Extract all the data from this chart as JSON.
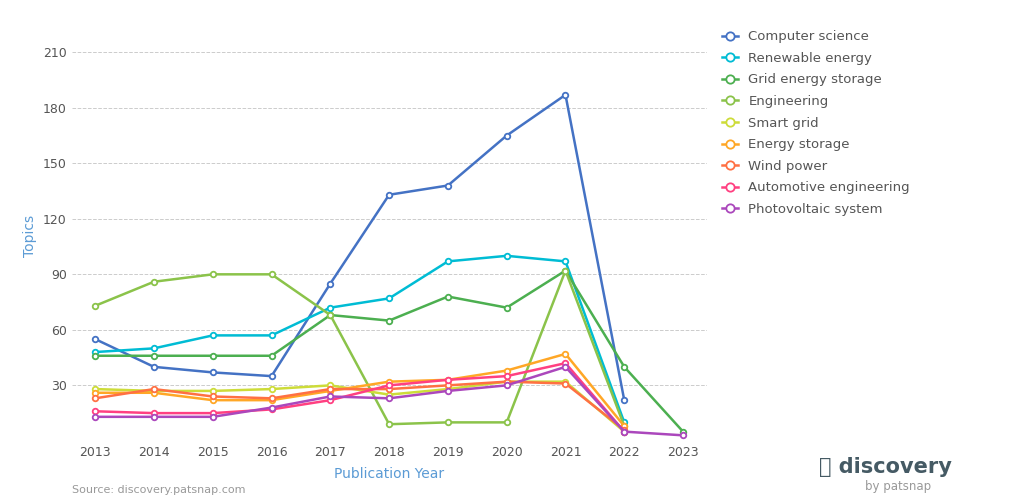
{
  "years": [
    2013,
    2014,
    2015,
    2016,
    2017,
    2018,
    2019,
    2020,
    2021,
    2022,
    2023
  ],
  "series": {
    "Computer science": {
      "color": "#4472C4",
      "values": [
        55,
        40,
        37,
        35,
        85,
        133,
        138,
        165,
        187,
        22,
        null
      ]
    },
    "Renewable energy": {
      "color": "#00BCD4",
      "values": [
        48,
        50,
        57,
        57,
        72,
        77,
        97,
        100,
        97,
        10,
        null
      ]
    },
    "Grid energy storage": {
      "color": "#4CAF50",
      "values": [
        46,
        46,
        46,
        46,
        68,
        65,
        78,
        72,
        92,
        40,
        5
      ]
    },
    "Engineering": {
      "color": "#8BC34A",
      "values": [
        73,
        86,
        90,
        90,
        68,
        9,
        10,
        10,
        92,
        8,
        null
      ]
    },
    "Smart grid": {
      "color": "#CDDC39",
      "values": [
        28,
        27,
        27,
        28,
        30,
        25,
        28,
        32,
        32,
        5,
        null
      ]
    },
    "Energy storage": {
      "color": "#FFA726",
      "values": [
        26,
        26,
        22,
        22,
        27,
        32,
        33,
        38,
        47,
        8,
        null
      ]
    },
    "Wind power": {
      "color": "#FF7043",
      "values": [
        23,
        28,
        24,
        23,
        28,
        28,
        30,
        32,
        31,
        6,
        null
      ]
    },
    "Automotive engineering": {
      "color": "#FF4081",
      "values": [
        16,
        15,
        15,
        17,
        22,
        30,
        33,
        35,
        42,
        5,
        null
      ]
    },
    "Photovoltaic system": {
      "color": "#AB47BC",
      "values": [
        13,
        13,
        13,
        18,
        24,
        23,
        27,
        30,
        40,
        5,
        3
      ]
    }
  },
  "yticks": [
    30,
    60,
    90,
    120,
    150,
    180,
    210
  ],
  "ylabel": "Topics",
  "xlabel": "Publication Year",
  "source_text": "Source: discovery.patsnap.com",
  "bg_color": "#ffffff",
  "grid_color": "#cccccc",
  "axis_label_color": "#5b9bd5",
  "tick_label_color": "#555555"
}
